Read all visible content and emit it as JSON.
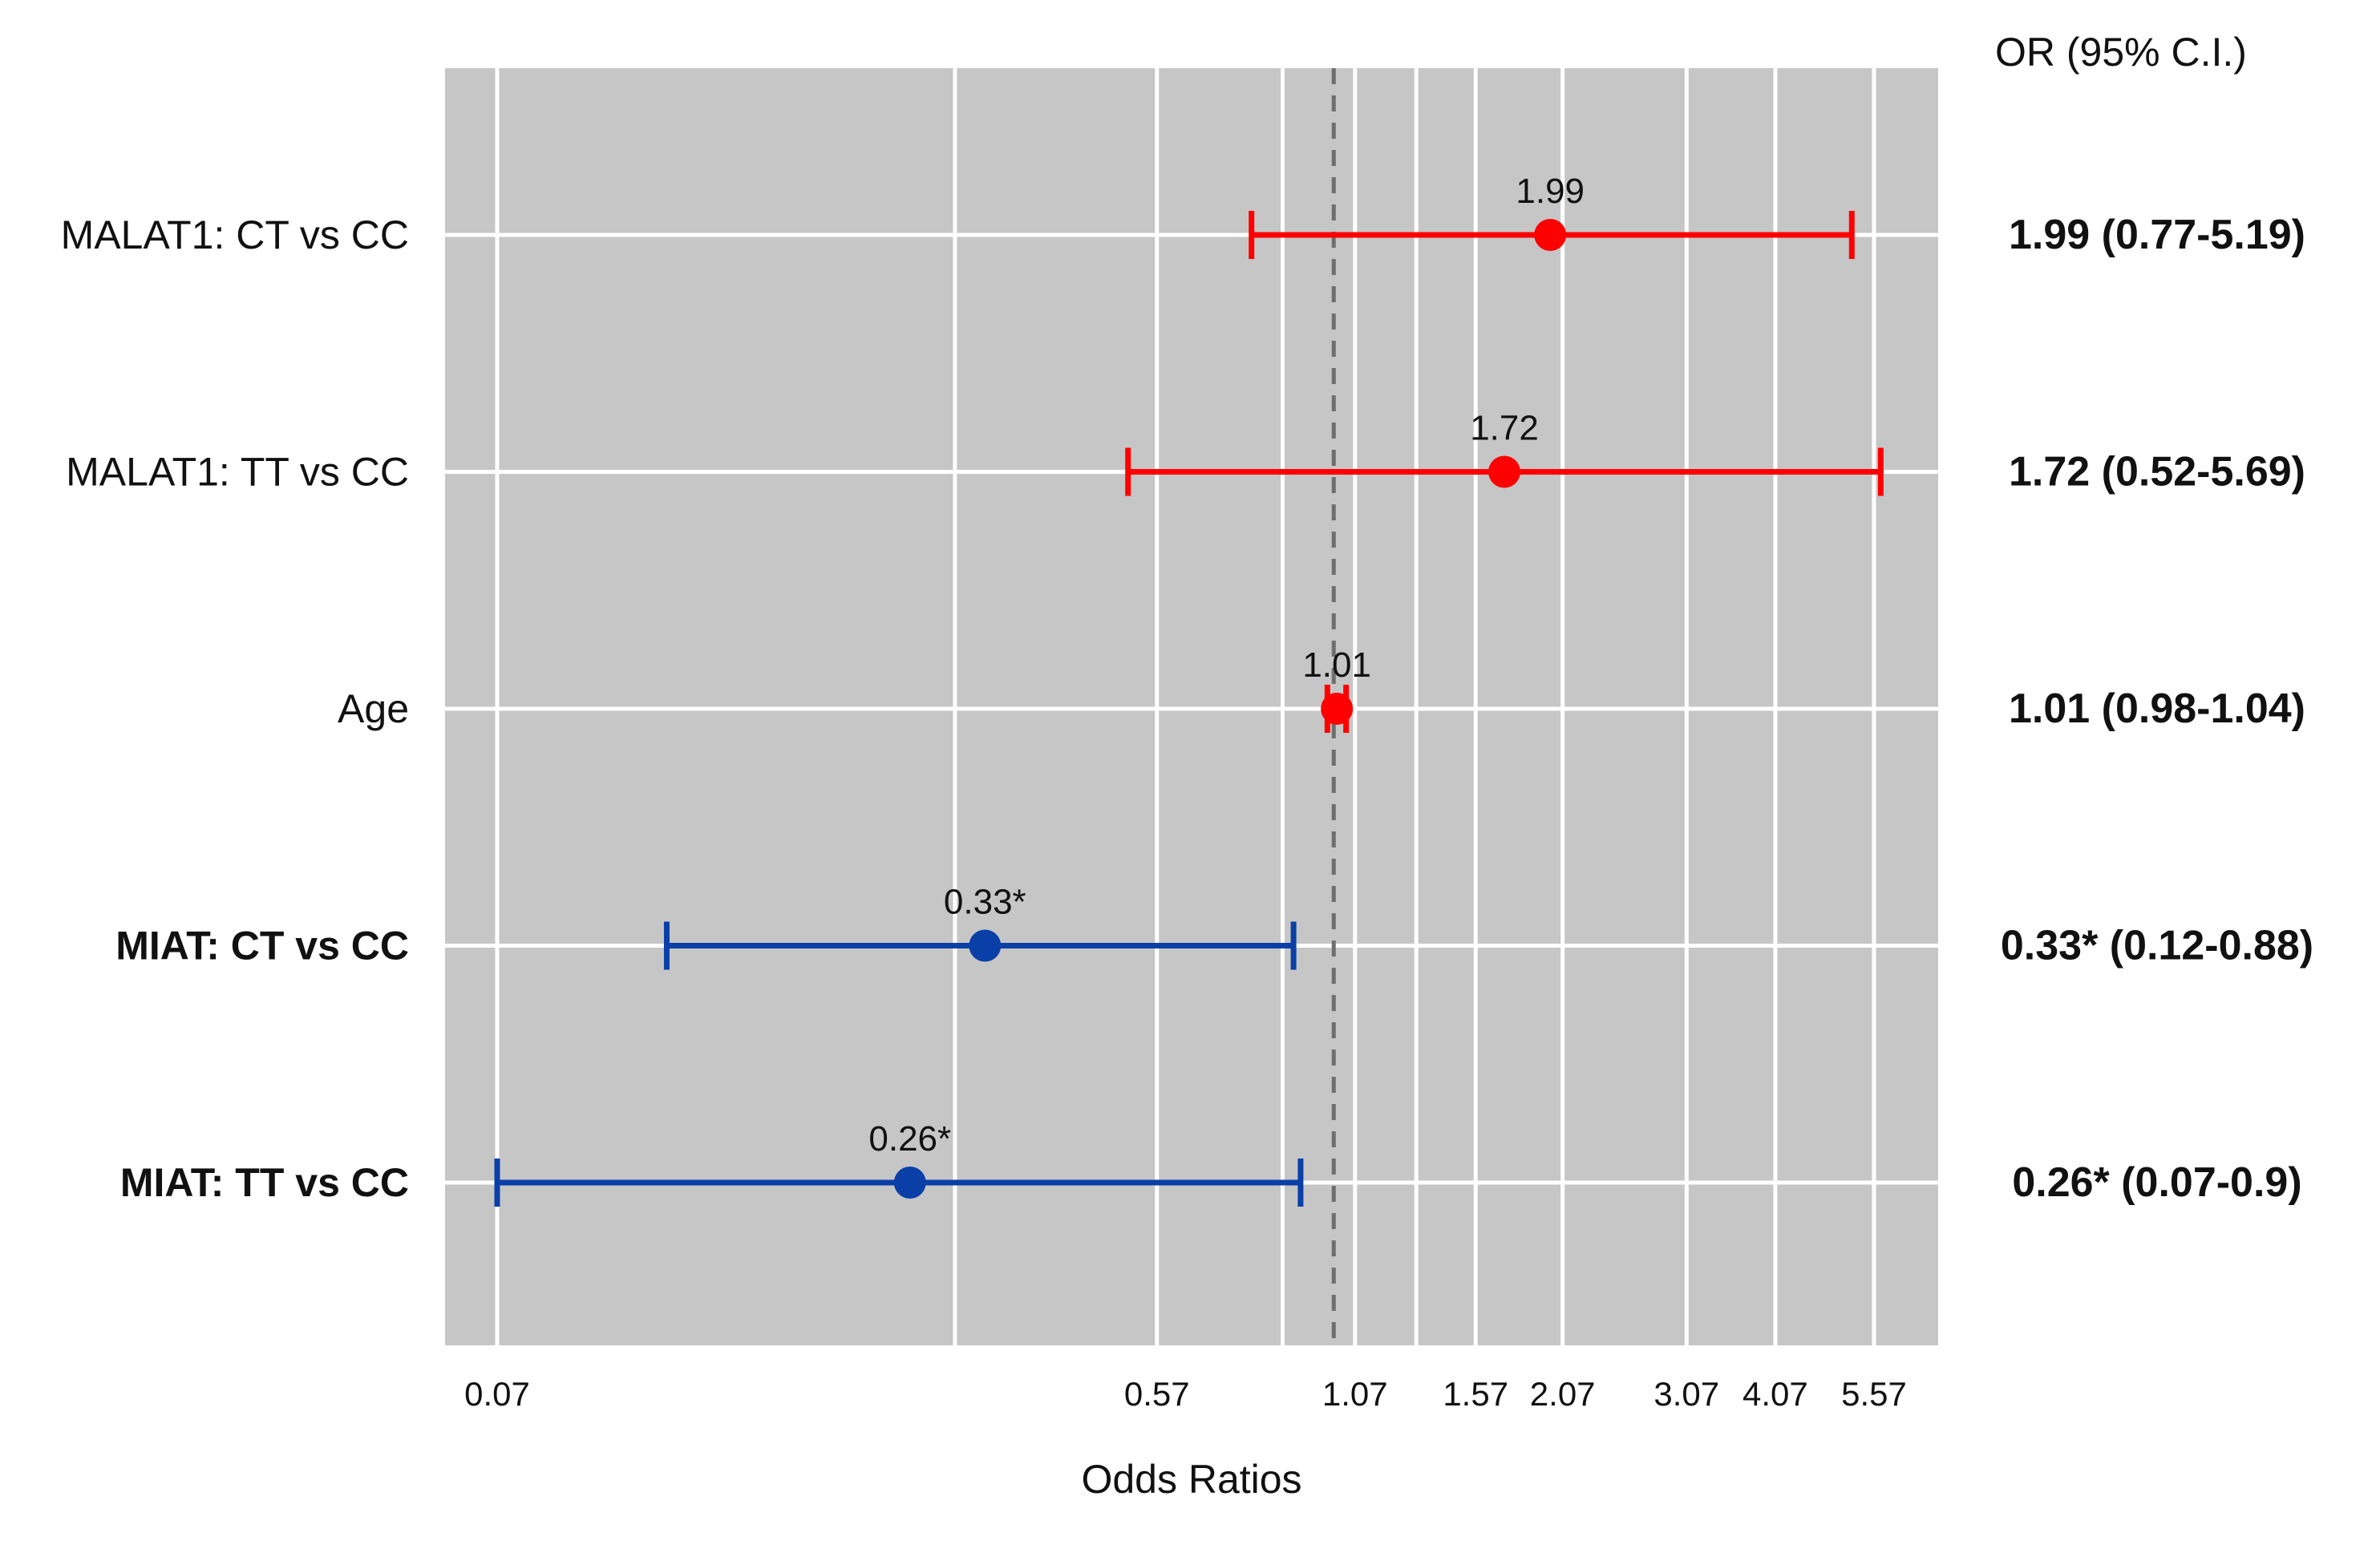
{
  "chart_data": {
    "type": "forest",
    "xlabel": "Odds Ratios",
    "or_ci_header": "OR (95% C.I.)",
    "x_scale": "log",
    "xlim": [
      0.065,
      6.3
    ],
    "x_ticks": [
      {
        "value": 0.07,
        "label": "0.07"
      },
      {
        "value": 0.57,
        "label": "0.57"
      },
      {
        "value": 1.07,
        "label": "1.07"
      },
      {
        "value": 1.57,
        "label": "1.57"
      },
      {
        "value": 2.07,
        "label": "2.07"
      },
      {
        "value": 3.07,
        "label": "3.07"
      },
      {
        "value": 4.07,
        "label": "4.07"
      },
      {
        "value": 5.57,
        "label": "5.57"
      }
    ],
    "extra_gridlines": [
      0.3,
      0.85,
      1.3
    ],
    "reference_line": 1.0,
    "grid": true,
    "rows": [
      {
        "label": "MALAT1: CT vs CC",
        "or": 1.99,
        "lower": 0.77,
        "upper": 5.19,
        "point_label": "1.99",
        "summary": "1.99 (0.77-5.19)",
        "bold": false,
        "color": "#ff0000"
      },
      {
        "label": "MALAT1: TT vs CC",
        "or": 1.72,
        "lower": 0.52,
        "upper": 5.69,
        "point_label": "1.72",
        "summary": "1.72 (0.52-5.69)",
        "bold": false,
        "color": "#ff0000"
      },
      {
        "label": "Age",
        "or": 1.01,
        "lower": 0.98,
        "upper": 1.04,
        "point_label": "1.01",
        "summary": "1.01 (0.98-1.04)",
        "bold": false,
        "color": "#ff0000"
      },
      {
        "label": "MIAT: CT vs CC",
        "or": 0.33,
        "lower": 0.12,
        "upper": 0.88,
        "point_label": "0.33*",
        "summary": "0.33* (0.12-0.88)",
        "bold": true,
        "color": "#0b3fa8"
      },
      {
        "label": "MIAT: TT vs CC",
        "or": 0.26,
        "lower": 0.07,
        "upper": 0.9,
        "point_label": "0.26*",
        "summary": "0.26* (0.07-0.9)",
        "bold": true,
        "color": "#0b3fa8"
      }
    ],
    "colors": {
      "panel": "#c6c6c6",
      "gridline": "#ffffff",
      "reference_line": "#6e6e6e",
      "risk": "#ff0000",
      "protective": "#0b3fa8"
    }
  }
}
